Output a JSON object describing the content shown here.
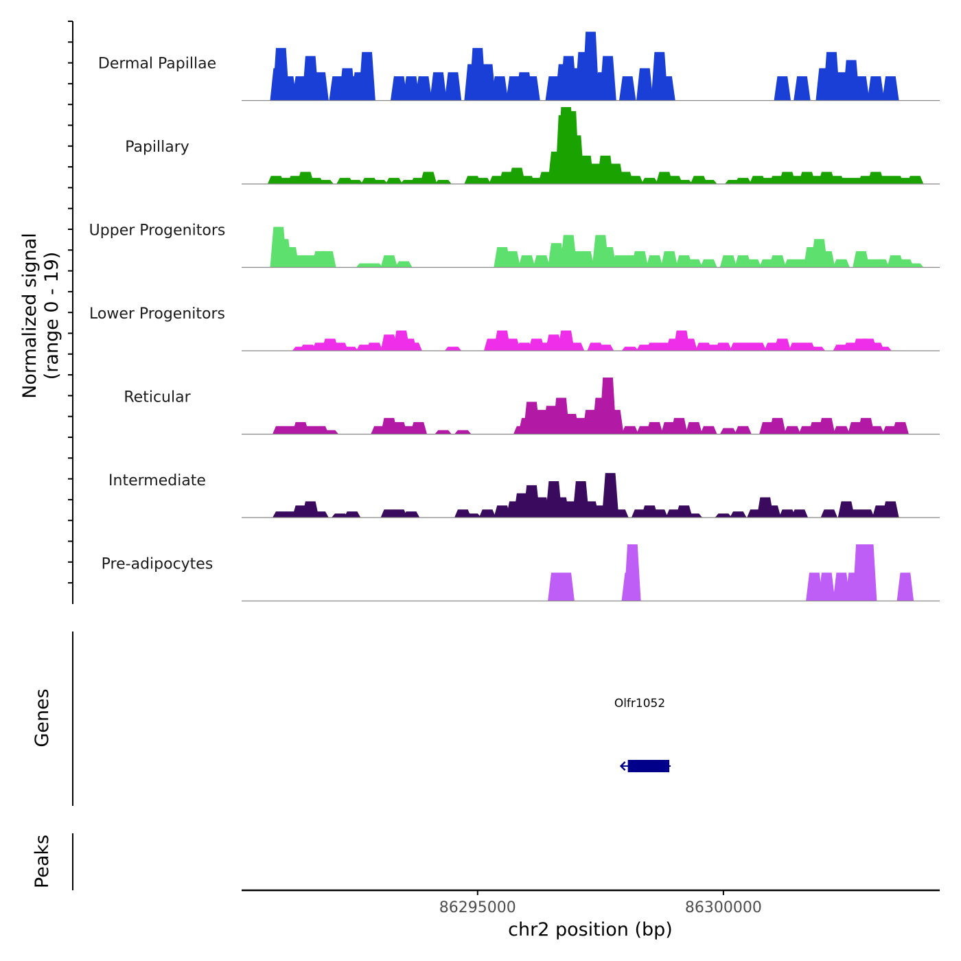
{
  "chart_data": {
    "type": "area",
    "title": "",
    "ylabel_line1": "Normalized signal",
    "ylabel_line2": "(range 0 - 19)",
    "xlabel": "chr2 position (bp)",
    "xlim": [
      86290200,
      86304400
    ],
    "ylim": [
      0,
      19
    ],
    "x_ticks": [
      86295000,
      86300000
    ],
    "x_tick_labels": [
      "86295000",
      "86300000"
    ],
    "tracks": [
      {
        "name": "Dermal Papillae",
        "color": "#1a3fd6",
        "values": [
          [
            86290950,
            8
          ],
          [
            86291000,
            13
          ],
          [
            86291150,
            6
          ],
          [
            86291400,
            6
          ],
          [
            86291600,
            11
          ],
          [
            86291800,
            7
          ],
          [
            86292150,
            6
          ],
          [
            86292350,
            8
          ],
          [
            86292450,
            6
          ],
          [
            86292600,
            7
          ],
          [
            86292750,
            12
          ],
          [
            86293400,
            6
          ],
          [
            86293650,
            6
          ],
          [
            86293900,
            6
          ],
          [
            86294200,
            7
          ],
          [
            86294500,
            7
          ],
          [
            86294900,
            9
          ],
          [
            86295000,
            13
          ],
          [
            86295100,
            7
          ],
          [
            86295200,
            9
          ],
          [
            86295450,
            6
          ],
          [
            86295750,
            6
          ],
          [
            86295950,
            7
          ],
          [
            86296100,
            6
          ],
          [
            86296550,
            6
          ],
          [
            86296750,
            9
          ],
          [
            86296850,
            11
          ],
          [
            86297000,
            8
          ],
          [
            86297150,
            12
          ],
          [
            86297300,
            17
          ],
          [
            86297550,
            7
          ],
          [
            86297650,
            11
          ],
          [
            86298050,
            6
          ],
          [
            86298400,
            8
          ],
          [
            86298700,
            12
          ],
          [
            86298850,
            6
          ],
          [
            86301200,
            6
          ],
          [
            86301600,
            6
          ],
          [
            86302050,
            8
          ],
          [
            86302200,
            12
          ],
          [
            86302400,
            7
          ],
          [
            86302600,
            10
          ],
          [
            86302800,
            6
          ],
          [
            86303100,
            6
          ],
          [
            86303400,
            6
          ]
        ]
      },
      {
        "name": "Papillary",
        "color": "#1aa300",
        "values": [
          [
            86290900,
            2
          ],
          [
            86291100,
            1.5
          ],
          [
            86291300,
            2
          ],
          [
            86291500,
            3
          ],
          [
            86291700,
            1.5
          ],
          [
            86291900,
            1
          ],
          [
            86292300,
            1.5
          ],
          [
            86292500,
            1
          ],
          [
            86292800,
            1.5
          ],
          [
            86293000,
            1
          ],
          [
            86293300,
            1.5
          ],
          [
            86293600,
            1
          ],
          [
            86293800,
            1.5
          ],
          [
            86294000,
            3
          ],
          [
            86294300,
            1
          ],
          [
            86294900,
            2
          ],
          [
            86295100,
            1.5
          ],
          [
            86295400,
            2
          ],
          [
            86295600,
            3
          ],
          [
            86295800,
            4
          ],
          [
            86296000,
            2
          ],
          [
            86296200,
            1.5
          ],
          [
            86296400,
            3
          ],
          [
            86296600,
            8
          ],
          [
            86296750,
            17
          ],
          [
            86296800,
            19
          ],
          [
            86296900,
            18
          ],
          [
            86297000,
            12
          ],
          [
            86297200,
            7
          ],
          [
            86297400,
            5
          ],
          [
            86297600,
            7
          ],
          [
            86297800,
            5
          ],
          [
            86298000,
            3
          ],
          [
            86298200,
            2
          ],
          [
            86298500,
            1.5
          ],
          [
            86298800,
            3
          ],
          [
            86299000,
            2
          ],
          [
            86299200,
            1
          ],
          [
            86299500,
            2
          ],
          [
            86299700,
            1
          ],
          [
            86300200,
            1
          ],
          [
            86300400,
            1.5
          ],
          [
            86300700,
            2
          ],
          [
            86300900,
            1.5
          ],
          [
            86301100,
            2
          ],
          [
            86301300,
            3
          ],
          [
            86301500,
            2
          ],
          [
            86301700,
            3
          ],
          [
            86301900,
            2
          ],
          [
            86302100,
            3
          ],
          [
            86302300,
            2
          ],
          [
            86302500,
            1.5
          ],
          [
            86302700,
            1.5
          ],
          [
            86302900,
            2
          ],
          [
            86303100,
            3
          ],
          [
            86303300,
            2
          ],
          [
            86303500,
            2
          ],
          [
            86303700,
            1.5
          ],
          [
            86303900,
            2
          ]
        ]
      },
      {
        "name": "Upper Progenitors",
        "color": "#5ee06e",
        "values": [
          [
            86290950,
            10
          ],
          [
            86291050,
            7
          ],
          [
            86291200,
            5
          ],
          [
            86291400,
            3
          ],
          [
            86291600,
            3
          ],
          [
            86291800,
            4
          ],
          [
            86291950,
            4
          ],
          [
            86292700,
            1
          ],
          [
            86292900,
            1
          ],
          [
            86293200,
            3
          ],
          [
            86293500,
            1.5
          ],
          [
            86295500,
            5
          ],
          [
            86295700,
            4
          ],
          [
            86296000,
            3
          ],
          [
            86296300,
            3
          ],
          [
            86296600,
            6
          ],
          [
            86296850,
            8
          ],
          [
            86297000,
            4
          ],
          [
            86297200,
            4
          ],
          [
            86297500,
            8
          ],
          [
            86297650,
            5
          ],
          [
            86297900,
            3
          ],
          [
            86298100,
            3
          ],
          [
            86298300,
            4
          ],
          [
            86298600,
            3
          ],
          [
            86298900,
            4
          ],
          [
            86299200,
            3
          ],
          [
            86299400,
            2
          ],
          [
            86299700,
            2
          ],
          [
            86300100,
            3
          ],
          [
            86300400,
            3
          ],
          [
            86300600,
            2
          ],
          [
            86300900,
            2
          ],
          [
            86301100,
            3
          ],
          [
            86301400,
            2
          ],
          [
            86301600,
            2
          ],
          [
            86301800,
            5
          ],
          [
            86301950,
            7
          ],
          [
            86302100,
            4
          ],
          [
            86302400,
            2
          ],
          [
            86302800,
            4
          ],
          [
            86303000,
            2
          ],
          [
            86303200,
            2
          ],
          [
            86303500,
            3
          ],
          [
            86303700,
            2
          ],
          [
            86303900,
            1
          ]
        ]
      },
      {
        "name": "Lower Progenitors",
        "color": "#ee2ee8",
        "values": [
          [
            86291400,
            1
          ],
          [
            86291550,
            1.5
          ],
          [
            86291800,
            2
          ],
          [
            86292000,
            3
          ],
          [
            86292200,
            2
          ],
          [
            86292400,
            1
          ],
          [
            86292700,
            1.5
          ],
          [
            86292900,
            2
          ],
          [
            86293200,
            4
          ],
          [
            86293450,
            5
          ],
          [
            86293600,
            3
          ],
          [
            86293700,
            2
          ],
          [
            86294500,
            1
          ],
          [
            86295300,
            3
          ],
          [
            86295500,
            5
          ],
          [
            86295700,
            3
          ],
          [
            86295950,
            2
          ],
          [
            86296200,
            3
          ],
          [
            86296400,
            2
          ],
          [
            86296550,
            4
          ],
          [
            86296800,
            5
          ],
          [
            86297000,
            2
          ],
          [
            86297400,
            2
          ],
          [
            86297600,
            1.5
          ],
          [
            86298100,
            1
          ],
          [
            86298400,
            1.5
          ],
          [
            86298600,
            2
          ],
          [
            86298800,
            2
          ],
          [
            86299000,
            3
          ],
          [
            86299150,
            5
          ],
          [
            86299300,
            3
          ],
          [
            86299600,
            2
          ],
          [
            86299800,
            1.5
          ],
          [
            86300000,
            2
          ],
          [
            86300300,
            2
          ],
          [
            86300500,
            2
          ],
          [
            86300700,
            2
          ],
          [
            86301000,
            2
          ],
          [
            86301200,
            3
          ],
          [
            86301500,
            2
          ],
          [
            86301700,
            2
          ],
          [
            86301900,
            1
          ],
          [
            86302400,
            1.5
          ],
          [
            86302600,
            2
          ],
          [
            86302800,
            3
          ],
          [
            86302950,
            3
          ],
          [
            86303100,
            2
          ],
          [
            86303250,
            1
          ]
        ]
      },
      {
        "name": "Reticular",
        "color": "#b21aa6",
        "values": [
          [
            86291000,
            2
          ],
          [
            86291200,
            2
          ],
          [
            86291400,
            3
          ],
          [
            86291600,
            2
          ],
          [
            86291800,
            2
          ],
          [
            86292000,
            1
          ],
          [
            86293000,
            2
          ],
          [
            86293200,
            4
          ],
          [
            86293400,
            3
          ],
          [
            86293600,
            2
          ],
          [
            86293800,
            3
          ],
          [
            86294300,
            1
          ],
          [
            86294700,
            1
          ],
          [
            86295900,
            2
          ],
          [
            86296000,
            4
          ],
          [
            86296100,
            8
          ],
          [
            86296300,
            6
          ],
          [
            86296500,
            7
          ],
          [
            86296700,
            9
          ],
          [
            86296900,
            5
          ],
          [
            86297100,
            4
          ],
          [
            86297300,
            6
          ],
          [
            86297500,
            9
          ],
          [
            86297650,
            14
          ],
          [
            86297800,
            6
          ],
          [
            86298100,
            2
          ],
          [
            86298400,
            2
          ],
          [
            86298600,
            3
          ],
          [
            86298900,
            3
          ],
          [
            86299100,
            4
          ],
          [
            86299400,
            3
          ],
          [
            86299700,
            2
          ],
          [
            86300100,
            1.5
          ],
          [
            86300400,
            2
          ],
          [
            86300900,
            3
          ],
          [
            86301100,
            4
          ],
          [
            86301400,
            2
          ],
          [
            86301700,
            2
          ],
          [
            86301900,
            3
          ],
          [
            86302100,
            4
          ],
          [
            86302400,
            2
          ],
          [
            86302700,
            3
          ],
          [
            86302900,
            4
          ],
          [
            86303100,
            2
          ],
          [
            86303400,
            2
          ],
          [
            86303600,
            3
          ]
        ]
      },
      {
        "name": "Intermediate",
        "color": "#3a0a5e",
        "values": [
          [
            86291000,
            1.5
          ],
          [
            86291200,
            1.5
          ],
          [
            86291400,
            3
          ],
          [
            86291600,
            4
          ],
          [
            86291800,
            1.5
          ],
          [
            86292200,
            1
          ],
          [
            86292450,
            1.5
          ],
          [
            86293200,
            2
          ],
          [
            86293400,
            2
          ],
          [
            86293650,
            1.5
          ],
          [
            86294700,
            2
          ],
          [
            86294900,
            1
          ],
          [
            86295200,
            2
          ],
          [
            86295500,
            3
          ],
          [
            86295750,
            4
          ],
          [
            86295900,
            6
          ],
          [
            86296100,
            8
          ],
          [
            86296300,
            5
          ],
          [
            86296550,
            9
          ],
          [
            86296700,
            5
          ],
          [
            86296900,
            4
          ],
          [
            86297100,
            9
          ],
          [
            86297300,
            4
          ],
          [
            86297500,
            3
          ],
          [
            86297700,
            11
          ],
          [
            86297900,
            2
          ],
          [
            86298300,
            2
          ],
          [
            86298500,
            3
          ],
          [
            86298700,
            2
          ],
          [
            86299000,
            2
          ],
          [
            86299200,
            3
          ],
          [
            86299400,
            1
          ],
          [
            86300000,
            1
          ],
          [
            86300300,
            1.5
          ],
          [
            86300650,
            2
          ],
          [
            86300850,
            5
          ],
          [
            86301000,
            3
          ],
          [
            86301300,
            2
          ],
          [
            86301550,
            2
          ],
          [
            86302150,
            2
          ],
          [
            86302500,
            4
          ],
          [
            86302700,
            2
          ],
          [
            86302900,
            2
          ],
          [
            86303200,
            3
          ],
          [
            86303400,
            4
          ]
        ]
      },
      {
        "name": "Pre-adipocytes",
        "color": "#bf5ef7",
        "values": [
          [
            86296600,
            7
          ],
          [
            86296800,
            7
          ],
          [
            86298100,
            7
          ],
          [
            86298150,
            14
          ],
          [
            86301850,
            7
          ],
          [
            86302100,
            7
          ],
          [
            86302400,
            7
          ],
          [
            86302650,
            7
          ],
          [
            86302800,
            14
          ],
          [
            86302950,
            14
          ],
          [
            86303700,
            7
          ]
        ]
      }
    ],
    "genes_label": "Genes",
    "peaks_label": "Peaks",
    "gene": {
      "name": "Olfr1052",
      "start": 86298000,
      "end": 86298900,
      "strand": "-",
      "color": "#00008b"
    }
  }
}
